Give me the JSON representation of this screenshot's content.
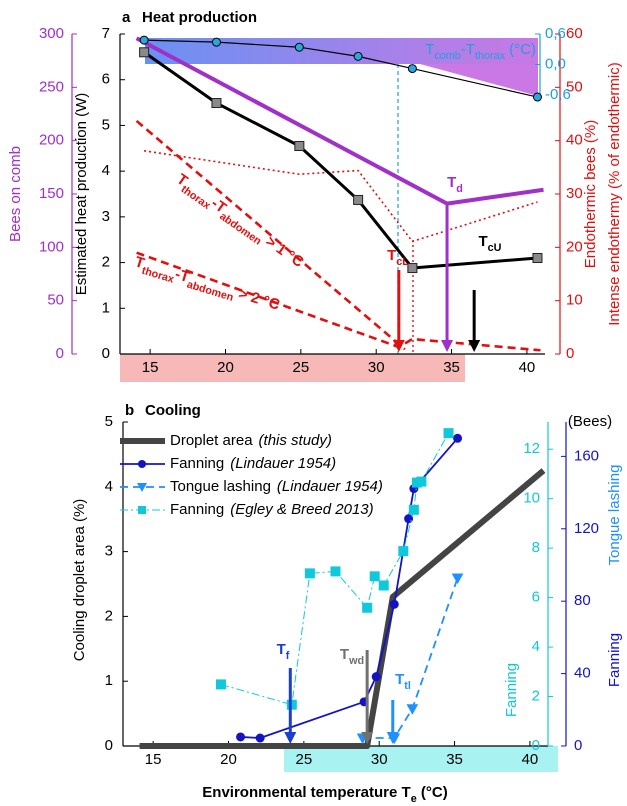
{
  "chart_data": [
    {
      "type": "line",
      "panel": "a",
      "title": "Heat production",
      "xlim": [
        13,
        41.2
      ],
      "xticks": [
        15,
        20,
        25,
        30,
        35,
        40
      ],
      "ylim": [
        0,
        7
      ],
      "yticks": [
        0,
        1,
        2,
        3,
        4,
        5,
        6,
        7
      ],
      "ylabel": "Estimated heat production (W)",
      "y2lim": [
        0,
        300
      ],
      "y2ticks": [
        0,
        50,
        100,
        150,
        200,
        250,
        300
      ],
      "y2label": "Bees on comb",
      "y3lim": [
        0,
        60
      ],
      "y3ticks": [
        0,
        10,
        20,
        30,
        40,
        50,
        60
      ],
      "y3label": "Endothermic bees (%)",
      "y3label_b": "Intense endothermy (% of endothermic)",
      "y4lim": [
        -0.6,
        0.6
      ],
      "y4ticks": [
        {
          "value": 0.6,
          "label": "0,6"
        },
        {
          "value": 0,
          "label": "0,0"
        },
        {
          "value": -0.6,
          "label": "-0,6"
        }
      ],
      "y4label": [
        "T",
        "comb",
        "-T",
        "thorax",
        " (°C)"
      ],
      "series": [
        {
          "axis": "y2",
          "color": "#a030c8",
          "width": 4,
          "dash": null,
          "marker": null,
          "x": [
            14.1,
            34.7,
            41.1
          ],
          "values": [
            296,
            141,
            154
          ]
        },
        {
          "axis": "y3",
          "color": "#e01010",
          "width": 1.6,
          "dash": "dot",
          "marker": null,
          "x": [
            14.6,
            24.9,
            28.8,
            32.4,
            40.7
          ],
          "values": [
            38.1,
            33.7,
            34.4,
            21.1,
            28.5
          ]
        },
        {
          "axis": "y3",
          "color": "#e01010",
          "width": 2.6,
          "dash": "dash",
          "marker": null,
          "x": [
            14.1,
            31.9
          ],
          "values": [
            43.7,
            0.9
          ]
        },
        {
          "axis": "y3",
          "color": "#e01010",
          "width": 2.6,
          "dash": "dash",
          "marker": null,
          "x": [
            14.1,
            31.5,
            32.4,
            40.9
          ],
          "values": [
            19.0,
            1.3,
            2.8,
            0.7
          ]
        },
        {
          "axis": "y",
          "color": "#000000",
          "width": 3,
          "dash": null,
          "marker": "square",
          "marker_color": "#8a8a8a",
          "x": [
            14.6,
            19.4,
            24.9,
            28.8,
            32.4,
            40.7
          ],
          "values": [
            6.6,
            5.49,
            4.55,
            3.37,
            1.88,
            2.1
          ]
        },
        {
          "axis": "y4",
          "color": "#000000",
          "width": 1.2,
          "dash": null,
          "marker": "circle",
          "marker_color": "#29a8e0",
          "x": [
            14.6,
            19.4,
            24.9,
            28.8,
            32.4,
            40.7
          ],
          "values": [
            0.48,
            0.44,
            0.34,
            0.16,
            -0.08,
            -0.64
          ]
        }
      ],
      "annotations": [
        {
          "text": [
            "T",
            "d"
          ],
          "x": 34.7,
          "color": "#a030c8"
        },
        {
          "text": [
            "T",
            "cL"
          ],
          "x": 31.5,
          "color": "#e01010"
        },
        {
          "text": [
            "T",
            "cU"
          ],
          "x": 36.5,
          "color": "#000000"
        }
      ],
      "notes": [
        {
          "text": [
            "T",
            "thorax",
            "-T",
            "abdomen",
            " > 1 °C"
          ],
          "color": "#e01010"
        },
        {
          "text": [
            "T",
            "thorax",
            "-T",
            "abdomen",
            " > 2 °C"
          ],
          "color": "#e01010"
        }
      ]
    },
    {
      "type": "line",
      "panel": "b",
      "title": "Cooling",
      "xlim": [
        13,
        41.2
      ],
      "xticks": [
        15,
        20,
        25,
        30,
        35,
        40
      ],
      "xlabel": [
        "Environmental temperature T",
        "e",
        " (°C)"
      ],
      "ylim": [
        0,
        5
      ],
      "yticks": [
        0,
        1,
        2,
        3,
        4,
        5
      ],
      "ylabel": "Cooling droplet area (%)",
      "y2lim": [
        0,
        179
      ],
      "y2ticks": [
        0,
        40,
        80,
        120,
        160
      ],
      "y2unit": "(Bees)",
      "y2label": "Tongue lashing",
      "y2label_b": "Fanning",
      "y3lim": [
        0,
        13.1
      ],
      "y3ticks": [
        0,
        2,
        4,
        6,
        8,
        10,
        12
      ],
      "y3label": "Fanning",
      "series": [
        {
          "name": "Droplet area",
          "source": "(this study)",
          "axis": "y",
          "color": "#444444",
          "width": 6,
          "dash": null,
          "marker": null,
          "x": [
            14.1,
            29.2,
            30.9,
            40.9
          ],
          "values": [
            0,
            0,
            2.3,
            4.25
          ]
        },
        {
          "name": "Fanning",
          "source": "(Lindauer 1954)",
          "axis": "y2",
          "color": "#1414c0",
          "width": 1.8,
          "dash": null,
          "marker": "circle",
          "x": [
            20.8,
            22.1,
            29.0,
            29.8,
            31.0,
            31.95,
            32.3,
            35.2
          ],
          "values": [
            5,
            4.4,
            24.4,
            38.3,
            78.3,
            125.6,
            142.2,
            170
          ]
        },
        {
          "name": "Tongue lashing",
          "source": "(Lindauer 1954)",
          "axis": "y2",
          "color": "#1e90ff",
          "width": 1.8,
          "dash": "dash",
          "marker": "triangle",
          "x": [
            28.9,
            31.0,
            32.2,
            35.2
          ],
          "values": [
            4.4,
            4.4,
            20.6,
            92.8
          ]
        },
        {
          "name": "Fanning",
          "source": "(Egley & Breed 2013)",
          "axis": "y3",
          "color": "#10c8dc",
          "width": 1,
          "dash": "dashdot",
          "marker": "square",
          "x": [
            19.5,
            24.2,
            25.4,
            27.1,
            29.2,
            29.7,
            30.3,
            31.6,
            32.3,
            32.5,
            32.8,
            34.6
          ],
          "values": [
            2.49,
            1.67,
            6.98,
            7.06,
            5.59,
            6.86,
            6.49,
            7.88,
            9.55,
            10.65,
            10.69,
            12.65
          ]
        }
      ],
      "annotations": [
        {
          "text": [
            "T",
            "f"
          ],
          "x": 24.1,
          "color": "#1a3fd0"
        },
        {
          "text": [
            "T",
            "wd"
          ],
          "x": 29.2,
          "color": "#707070"
        },
        {
          "text": [
            "T",
            "tl"
          ],
          "x": 30.9,
          "color": "#1e90ff"
        }
      ]
    }
  ]
}
